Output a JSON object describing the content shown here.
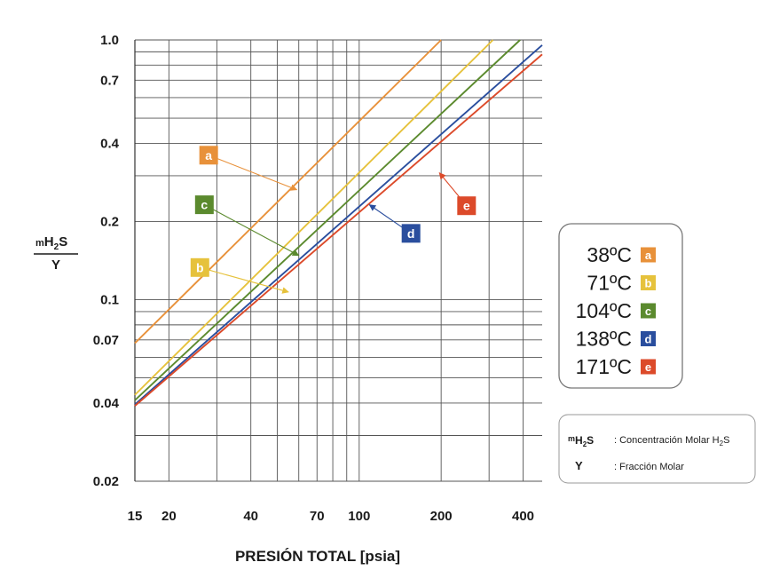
{
  "chart_data": {
    "type": "line",
    "xscale": "log",
    "yscale": "log",
    "xlim": [
      15,
      470
    ],
    "ylim": [
      0.02,
      1.0
    ],
    "grid": true,
    "xlabel": "PRESIÓN TOTAL [psia]",
    "ylabel": {
      "numerator": "m",
      "numerator_sub": "H",
      "numerator_sub2": "2",
      "numerator_tail": "S",
      "denominator": "Y"
    },
    "x_tick_labels": [
      {
        "value": 15,
        "label": "15"
      },
      {
        "value": 20,
        "label": "20"
      },
      {
        "value": 40,
        "label": "40"
      },
      {
        "value": 70,
        "label": "70"
      },
      {
        "value": 100,
        "label": "100"
      },
      {
        "value": 200,
        "label": "200"
      },
      {
        "value": 400,
        "label": "400"
      }
    ],
    "y_tick_labels": [
      {
        "value": 1.0,
        "label": "1.0"
      },
      {
        "value": 0.7,
        "label": "0.7"
      },
      {
        "value": 0.4,
        "label": "0.4"
      },
      {
        "value": 0.2,
        "label": "0.2"
      },
      {
        "value": 0.1,
        "label": "0.1"
      },
      {
        "value": 0.07,
        "label": "0.07"
      },
      {
        "value": 0.04,
        "label": "0.04"
      },
      {
        "value": 0.02,
        "label": "0.02"
      }
    ],
    "x_gridlines": [
      15,
      20,
      30,
      40,
      50,
      60,
      70,
      80,
      90,
      100,
      200,
      300,
      400
    ],
    "y_gridlines": [
      0.02,
      0.03,
      0.04,
      0.05,
      0.06,
      0.07,
      0.08,
      0.09,
      0.1,
      0.2,
      0.3,
      0.4,
      0.5,
      0.6,
      0.7,
      0.8,
      0.9,
      1.0
    ],
    "series": [
      {
        "name": "a",
        "color": "#e8913a",
        "points": [
          [
            15,
            0.068
          ],
          [
            200,
            1.0
          ]
        ],
        "annotation": {
          "badge_at": [
            28,
            0.36
          ],
          "arrow_to": [
            59,
            0.265
          ]
        }
      },
      {
        "name": "b",
        "color": "#e6c23c",
        "points": [
          [
            15,
            0.043
          ],
          [
            310,
            1.0
          ]
        ],
        "annotation": {
          "badge_at": [
            26,
            0.133
          ],
          "arrow_to": [
            55,
            0.107
          ]
        }
      },
      {
        "name": "c",
        "color": "#5b8a2e",
        "points": [
          [
            15,
            0.041
          ],
          [
            390,
            1.0
          ]
        ],
        "annotation": {
          "badge_at": [
            27,
            0.232
          ],
          "arrow_to": [
            60,
            0.148
          ]
        }
      },
      {
        "name": "d",
        "color": "#2a4e9e",
        "points": [
          [
            15,
            0.0395
          ],
          [
            470,
            0.955
          ]
        ],
        "annotation": {
          "badge_at": [
            155,
            0.18
          ],
          "arrow_to": [
            109,
            0.232
          ]
        }
      },
      {
        "name": "e",
        "color": "#dc4a2a",
        "points": [
          [
            15,
            0.039
          ],
          [
            470,
            0.88
          ]
        ],
        "annotation": {
          "badge_at": [
            248,
            0.23
          ],
          "arrow_to": [
            197,
            0.308
          ]
        }
      }
    ]
  },
  "legend": {
    "entries": [
      {
        "temp": "38ºC",
        "badge": "a",
        "color": "#e8913a"
      },
      {
        "temp": "71ºC",
        "badge": "b",
        "color": "#e6c23c"
      },
      {
        "temp": "104ºC",
        "badge": "c",
        "color": "#5b8a2e"
      },
      {
        "temp": "138ºC",
        "badge": "d",
        "color": "#2a4e9e"
      },
      {
        "temp": "171ºC",
        "badge": "e",
        "color": "#dc4a2a"
      }
    ]
  },
  "definitions": {
    "m_symbol": "m",
    "m_symbol_sub": "H",
    "m_symbol_sub2": "2",
    "m_symbol_tail": "S",
    "m_text": ": Concentración Molar H",
    "m_text_sub": "2",
    "m_text_tail": "S",
    "y_symbol": "Y",
    "y_text": ": Fracción Molar"
  }
}
